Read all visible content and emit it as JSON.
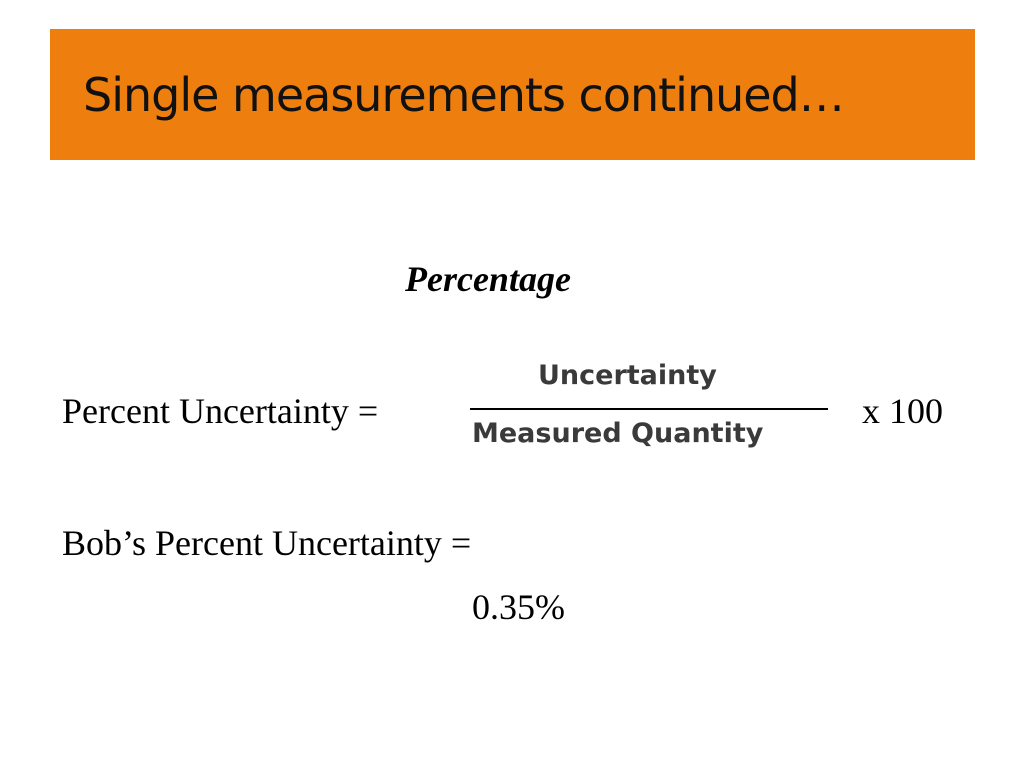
{
  "header": {
    "title": "Single measurements continued…"
  },
  "body": {
    "subheading": "Percentage",
    "formula": {
      "lhs": "Percent Uncertainty =",
      "numerator": "Uncertainty",
      "denominator": "Measured Quantity",
      "multiplier": "x 100"
    },
    "result_label": "Bob’s Percent Uncertainty =",
    "result_value": "0.35%"
  }
}
